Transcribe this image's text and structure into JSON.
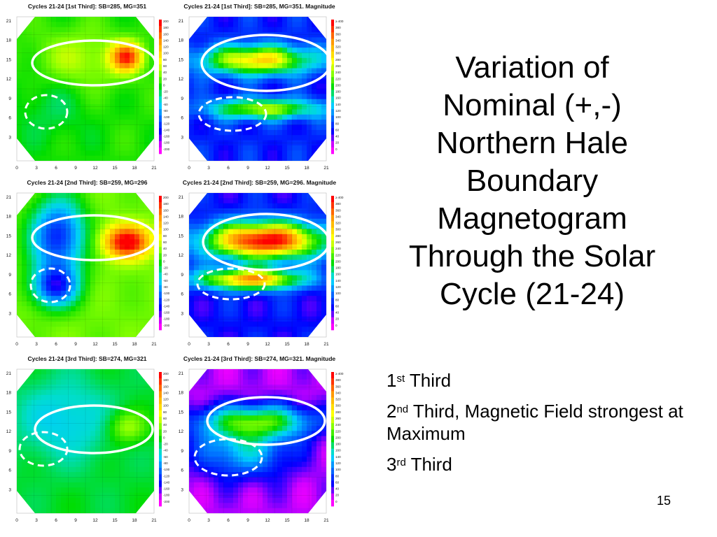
{
  "slide": {
    "title_lines": [
      "Variation of",
      "Nominal (+,-)",
      "Northern Hale",
      "Boundary",
      "Magnetogram",
      "Through the Solar",
      "Cycle (21-24)"
    ],
    "bullets": [
      {
        "num": "1",
        "sup": "st",
        "text": " Third"
      },
      {
        "num": "2",
        "sup": "nd",
        "text": " Third, Magnetic Field strongest at Maximum"
      },
      {
        "num": "3",
        "sup": "rd",
        "text": " Third"
      }
    ],
    "page_number": "15"
  },
  "panels": [
    {
      "title": "Cycles 21-24 [1st Third]: SB=285, MG=351",
      "kind": "nominal",
      "variant": 1
    },
    {
      "title": "Cycles 21-24 [1st Third]: SB=285, MG=351. Magnitude",
      "kind": "magnitude",
      "variant": 1
    },
    {
      "title": "Cycles 21-24 [2nd Third]: SB=259, MG=296",
      "kind": "nominal",
      "variant": 2
    },
    {
      "title": "Cycles 21-24 [2nd Third]: SB=259, MG=296. Magnitude",
      "kind": "magnitude",
      "variant": 2
    },
    {
      "title": "Cycles 21-24 [3rd Third]: SB=274, MG=321",
      "kind": "nominal",
      "variant": 3
    },
    {
      "title": "Cycles 21-24 [3rd Third]: SB=274, MG=321. Magnitude",
      "kind": "magnitude",
      "variant": 3
    }
  ],
  "axes": {
    "x_ticks": [
      "0",
      "3",
      "6",
      "9",
      "12",
      "15",
      "18",
      "21"
    ],
    "y_ticks": [
      "21",
      "18",
      "15",
      "12",
      "9",
      "6",
      "3"
    ]
  },
  "colorbars": {
    "nominal_labels": [
      "200",
      "180",
      "160",
      "140",
      "120",
      "100",
      "80",
      "60",
      "40",
      "20",
      "0",
      "-20",
      "-40",
      "-60",
      "-80",
      "-100",
      "-120",
      "-140",
      "-160",
      "-180",
      "-200"
    ],
    "magnitude_labels": [
      "≥ 400",
      "380",
      "360",
      "340",
      "320",
      "300",
      "280",
      "260",
      "240",
      "220",
      "200",
      "180",
      "160",
      "140",
      "120",
      "100",
      "80",
      "60",
      "40",
      "20",
      "0"
    ],
    "nominal_colors": [
      "#ff0000",
      "#ff3300",
      "#ff6600",
      "#ff9900",
      "#ffbb00",
      "#ffdd00",
      "#ffff00",
      "#ccff00",
      "#88ff00",
      "#44ee00",
      "#00dd00",
      "#00dd66",
      "#00ddcc",
      "#00ccff",
      "#0099ff",
      "#0066ff",
      "#0033ff",
      "#0000ff",
      "#6600ff",
      "#cc00ff",
      "#ff00ff"
    ],
    "magnitude_colors": [
      "#ff0000",
      "#ff3300",
      "#ff6600",
      "#ff9900",
      "#ffbb00",
      "#ffdd00",
      "#ffff00",
      "#ccff00",
      "#88ff00",
      "#44ee00",
      "#00dd00",
      "#00dd66",
      "#00ddcc",
      "#00ccff",
      "#0099ff",
      "#0066ff",
      "#0033ff",
      "#0000ff",
      "#6600ff",
      "#cc00ff",
      "#ff00ff"
    ]
  }
}
